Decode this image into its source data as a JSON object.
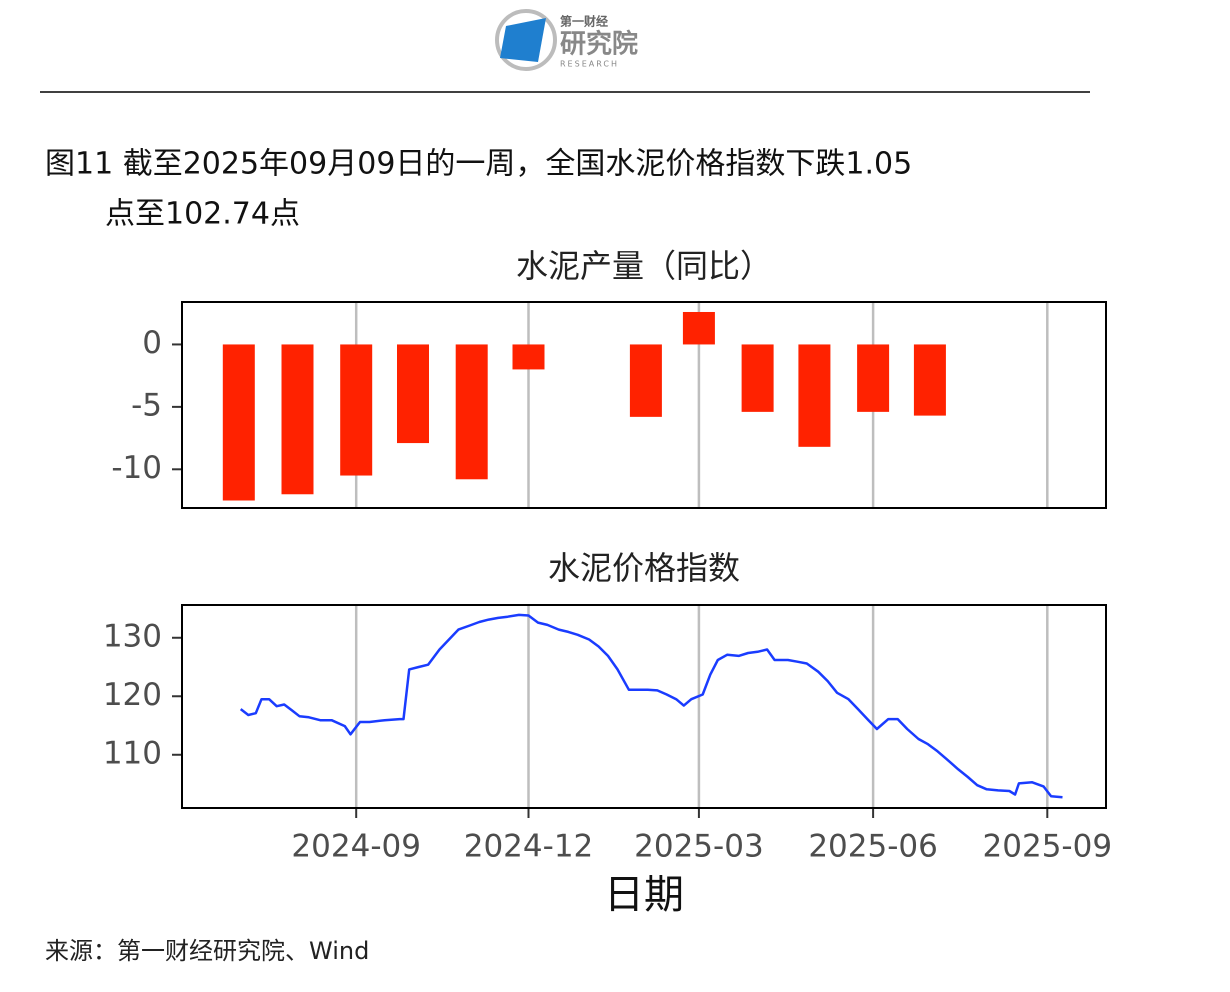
{
  "header": {
    "logo_top": "第一财经",
    "logo_main": "研究院",
    "logo_sub": "RESEARCH"
  },
  "caption_lines": [
    "图11  截至2025年09月09日的一周，全国水泥价格指数下跌1.05",
    "点至102.74点"
  ],
  "chart_data": [
    {
      "type": "bar",
      "title": "水泥产量（同比）",
      "color": "#ff2200",
      "x": [
        "2024-07",
        "2024-08",
        "2024-09",
        "2024-10",
        "2024-11",
        "2024-12",
        "2025-02",
        "2025-03",
        "2025-04",
        "2025-05",
        "2025-06",
        "2025-07"
      ],
      "values": [
        -12.5,
        -12.0,
        -10.5,
        -7.9,
        -10.8,
        -2.0,
        -5.8,
        2.6,
        -5.4,
        -8.2,
        -5.4,
        -5.7
      ],
      "xlim": [
        "2024-06-01",
        "2025-10-02"
      ],
      "xticks": [
        "2024-09",
        "2024-12",
        "2025-03",
        "2025-06",
        "2025-09"
      ],
      "show_xtick_labels": false,
      "ylim": [
        -13.1,
        3.4
      ],
      "yticks": [
        0,
        -5,
        -10
      ],
      "grid": true
    },
    {
      "type": "line",
      "title": "水泥价格指数",
      "x_label": "日期",
      "color": "#1a3cff",
      "x": [
        "2024-07-02",
        "2024-07-06",
        "2024-07-10",
        "2024-07-13",
        "2024-07-17",
        "2024-07-21",
        "2024-07-25",
        "2024-07-29",
        "2024-08-02",
        "2024-08-07",
        "2024-08-13",
        "2024-08-19",
        "2024-08-26",
        "2024-08-29",
        "2024-09-03",
        "2024-09-08",
        "2024-09-16",
        "2024-09-24",
        "2024-09-26",
        "2024-09-29",
        "2024-10-04",
        "2024-10-09",
        "2024-10-15",
        "2024-10-20",
        "2024-10-25",
        "2024-10-31",
        "2024-11-05",
        "2024-11-10",
        "2024-11-15",
        "2024-11-20",
        "2024-11-26",
        "2024-12-01",
        "2024-12-06",
        "2024-12-11",
        "2024-12-17",
        "2024-12-22",
        "2024-12-27",
        "2025-01-02",
        "2025-01-07",
        "2025-01-12",
        "2025-01-17",
        "2025-01-23",
        "2025-01-28",
        "2025-02-02",
        "2025-02-07",
        "2025-02-12",
        "2025-02-17",
        "2025-02-21",
        "2025-02-25",
        "2025-03-03",
        "2025-03-07",
        "2025-03-11",
        "2025-03-16",
        "2025-03-22",
        "2025-03-27",
        "2025-04-01",
        "2025-04-06",
        "2025-04-10",
        "2025-04-17",
        "2025-04-22",
        "2025-04-27",
        "2025-05-03",
        "2025-05-08",
        "2025-05-13",
        "2025-05-19",
        "2025-05-24",
        "2025-05-29",
        "2025-06-03",
        "2025-06-09",
        "2025-06-14",
        "2025-06-19",
        "2025-06-25",
        "2025-06-30",
        "2025-07-05",
        "2025-07-10",
        "2025-07-16",
        "2025-07-21",
        "2025-07-26",
        "2025-07-31",
        "2025-08-06",
        "2025-08-12",
        "2025-08-15",
        "2025-08-17",
        "2025-08-24",
        "2025-08-30",
        "2025-09-03",
        "2025-09-09"
      ],
      "values": [
        117.8,
        116.8,
        117.1,
        119.5,
        119.5,
        118.3,
        118.6,
        117.6,
        116.6,
        116.4,
        115.9,
        115.9,
        114.9,
        113.5,
        115.6,
        115.6,
        115.9,
        116.1,
        116.1,
        124.6,
        125.0,
        125.4,
        128.0,
        129.7,
        131.4,
        132.1,
        132.7,
        133.1,
        133.4,
        133.6,
        133.9,
        133.8,
        132.6,
        132.2,
        131.4,
        131.0,
        130.5,
        129.7,
        128.5,
        126.9,
        124.6,
        121.1,
        121.1,
        121.1,
        121.0,
        120.3,
        119.5,
        118.4,
        119.5,
        120.3,
        123.7,
        126.2,
        127.1,
        126.9,
        127.4,
        127.6,
        128.0,
        126.2,
        126.2,
        125.9,
        125.6,
        124.2,
        122.6,
        120.6,
        119.5,
        117.8,
        116.1,
        114.4,
        116.1,
        116.1,
        114.4,
        112.7,
        111.8,
        110.6,
        109.2,
        107.5,
        106.2,
        104.8,
        104.1,
        103.9,
        103.8,
        103.2,
        105.1,
        105.3,
        104.6,
        102.9,
        102.74
      ],
      "xlim": [
        "2024-06-01",
        "2025-10-02"
      ],
      "xticks": [
        "2024-09",
        "2024-12",
        "2025-03",
        "2025-06",
        "2025-09"
      ],
      "show_xtick_labels": true,
      "ylim": [
        100.9,
        135.6
      ],
      "yticks": [
        130,
        120,
        110
      ],
      "grid": true
    }
  ],
  "source": "来源：第一财经研究院、Wind"
}
